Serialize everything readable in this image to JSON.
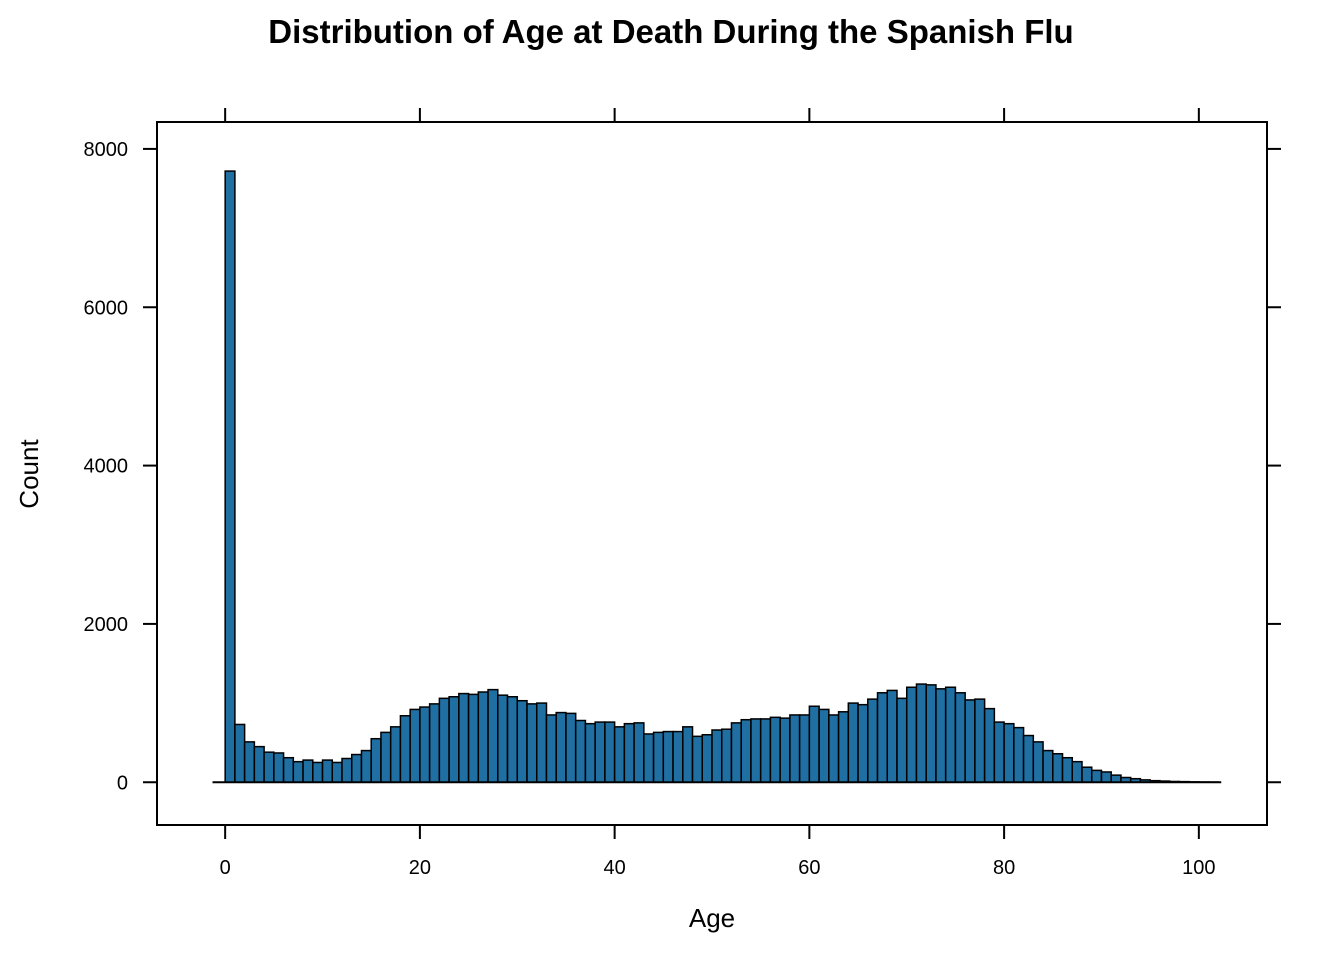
{
  "chart_data": {
    "type": "bar",
    "title": "Distribution of Age at Death During the Spanish Flu",
    "xlabel": "Age",
    "ylabel": "Count",
    "xlim": [
      -7,
      107
    ],
    "ylim": [
      -540,
      8340
    ],
    "x_ticks": [
      0,
      20,
      40,
      60,
      80,
      100
    ],
    "y_ticks": [
      0,
      2000,
      4000,
      6000,
      8000
    ],
    "bin_width": 1,
    "bin_start": 0,
    "grid": false,
    "legend": "none",
    "colors": {
      "bar_fill": "#1f6fa3",
      "bar_stroke": "#000000",
      "axis": "#000000",
      "background": "#ffffff"
    },
    "values": [
      7720,
      730,
      510,
      450,
      380,
      370,
      310,
      260,
      280,
      250,
      280,
      250,
      300,
      350,
      400,
      550,
      630,
      700,
      840,
      920,
      950,
      990,
      1060,
      1080,
      1120,
      1110,
      1140,
      1170,
      1100,
      1080,
      1030,
      990,
      1000,
      850,
      880,
      870,
      780,
      740,
      760,
      760,
      700,
      740,
      750,
      610,
      630,
      640,
      640,
      700,
      580,
      600,
      660,
      670,
      750,
      790,
      800,
      800,
      820,
      810,
      850,
      850,
      960,
      920,
      850,
      890,
      1000,
      980,
      1050,
      1130,
      1160,
      1060,
      1200,
      1240,
      1230,
      1180,
      1200,
      1130,
      1040,
      1050,
      930,
      760,
      740,
      690,
      590,
      510,
      400,
      360,
      310,
      260,
      190,
      150,
      130,
      90,
      60,
      45,
      30,
      20,
      15,
      10,
      8,
      5,
      3,
      2
    ]
  }
}
